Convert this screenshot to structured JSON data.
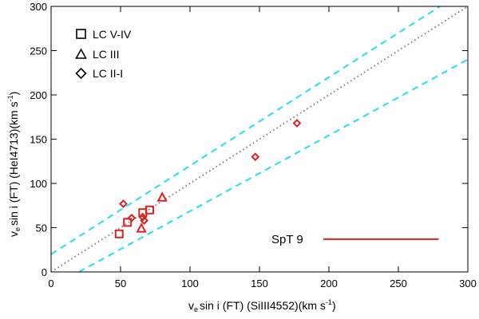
{
  "chart_data": {
    "type": "scatter",
    "xlabel": "v_e sin i (FT) (SiIII4552)(km s^-1)",
    "ylabel": "v_e sin i (FT) (HeI4713)(km s^-1)",
    "xlabel_parts": {
      "v": "v",
      "e": "e",
      "rest1": "sin i (FT) (SiIII4552)(km s",
      "exp": "-1",
      "close": ")"
    },
    "ylabel_parts": {
      "v": "v",
      "e": "e",
      "rest1": "sin i (FT) (HeI4713)(km s",
      "exp": "-1",
      "close": ")"
    },
    "xlim": [
      0,
      300
    ],
    "ylim": [
      0,
      300
    ],
    "xticks": [
      0,
      50,
      100,
      150,
      200,
      250,
      300
    ],
    "yticks": [
      0,
      50,
      100,
      150,
      200,
      250,
      300
    ],
    "xtick_labels": [
      "0",
      "50",
      "100",
      "150",
      "200",
      "250",
      "300"
    ],
    "ytick_labels": [
      "0",
      "50",
      "100",
      "150",
      "200",
      "250",
      "300"
    ],
    "grid": false,
    "legend_placement": "top-left",
    "legend": [
      {
        "marker": "square",
        "label": "LC V-IV"
      },
      {
        "marker": "triangle",
        "label": "LC III"
      },
      {
        "marker": "diamond",
        "label": "LC II-I"
      }
    ],
    "reference_lines": [
      {
        "name": "one-to-one",
        "style": "dotted",
        "color": "#808080",
        "points": [
          [
            0,
            0
          ],
          [
            300,
            300
          ]
        ]
      },
      {
        "name": "upper-bound",
        "style": "dashed",
        "color": "#22e0ee",
        "points": [
          [
            0,
            20
          ],
          [
            280,
            300
          ]
        ]
      },
      {
        "name": "lower-bound",
        "style": "dashed",
        "color": "#22e0ee",
        "points": [
          [
            20,
            0
          ],
          [
            300,
            240
          ]
        ]
      }
    ],
    "series": [
      {
        "name": "LC V-IV",
        "marker": "square",
        "color": "#dd2222",
        "points": [
          [
            49,
            43
          ],
          [
            55,
            56
          ],
          [
            66,
            67
          ],
          [
            71,
            70
          ]
        ]
      },
      {
        "name": "LC III",
        "marker": "triangle",
        "color": "#dd2222",
        "points": [
          [
            65,
            49
          ],
          [
            80,
            84
          ]
        ]
      },
      {
        "name": "LC II-I",
        "marker": "diamond",
        "color": "#dd2222",
        "points": [
          [
            52,
            77
          ],
          [
            58,
            61
          ],
          [
            66,
            62
          ],
          [
            67,
            58
          ],
          [
            147,
            130
          ],
          [
            177,
            168
          ]
        ]
      }
    ],
    "annotation": {
      "label": "SpT 9",
      "color": "#dd2222",
      "line_x": [
        196,
        279
      ],
      "y": 37
    }
  }
}
